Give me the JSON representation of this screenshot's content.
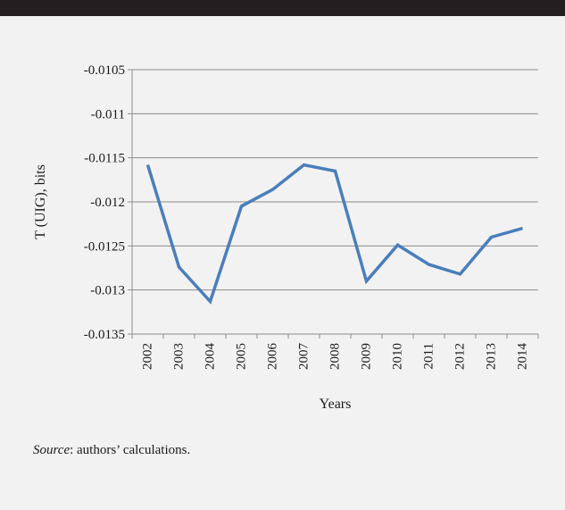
{
  "source": {
    "label": "Source",
    "text": ": authors’ calculations."
  },
  "colors": {
    "line": "#4a7ebb",
    "grid": "#8c8c8c",
    "background": "#f2f2f2",
    "header": "#231f20"
  },
  "chart_data": {
    "type": "line",
    "title": "",
    "xlabel": "Years",
    "ylabel": "T (UIG), bits",
    "ylim": [
      -0.0135,
      -0.0105
    ],
    "yticks": [
      -0.0105,
      -0.011,
      -0.0115,
      -0.012,
      -0.0125,
      -0.013,
      -0.0135
    ],
    "ytick_labels": [
      "-0.0105",
      "-0.011",
      "-0.0115",
      "-0.012",
      "-0.0125",
      "-0.013",
      "-0.0135"
    ],
    "grid": "horizontal",
    "legend": "none",
    "categories": [
      "2002",
      "2003",
      "2004",
      "2005",
      "2006",
      "2007",
      "2008",
      "2009",
      "2010",
      "2011",
      "2012",
      "2013",
      "2014"
    ],
    "series": [
      {
        "values": [
          -0.01158,
          -0.01274,
          -0.01313,
          -0.01205,
          -0.01186,
          -0.01158,
          -0.01165,
          -0.0129,
          -0.01249,
          -0.01271,
          -0.01282,
          -0.0124,
          -0.0123
        ]
      }
    ]
  }
}
